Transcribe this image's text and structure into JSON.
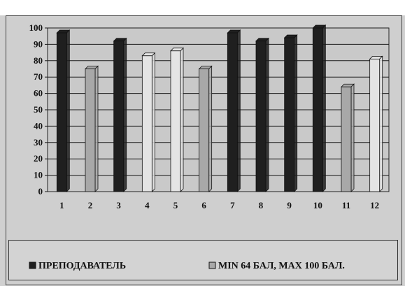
{
  "chart_data": {
    "type": "bar",
    "categories": [
      "1",
      "2",
      "3",
      "4",
      "5",
      "6",
      "7",
      "8",
      "9",
      "10",
      "11",
      "12"
    ],
    "series": [
      {
        "name": "ПРЕПОДАВАТЕЛЬ",
        "color": "#1f1f1f",
        "values": [
          97,
          null,
          92,
          null,
          null,
          null,
          97,
          92,
          94,
          100,
          null,
          null
        ]
      },
      {
        "name": "MIN 64 БАЛ, MAX 100 БАЛ.",
        "color": "#a8a8a8",
        "values": [
          null,
          75,
          null,
          null,
          null,
          75,
          null,
          null,
          null,
          null,
          64,
          null
        ]
      },
      {
        "name": "",
        "color": "#e4e4e4",
        "values": [
          null,
          null,
          null,
          83,
          86,
          null,
          null,
          null,
          null,
          null,
          null,
          81
        ]
      }
    ],
    "ylim": [
      0,
      100
    ],
    "yticks": [
      "0",
      "10",
      "20",
      "30",
      "40",
      "50",
      "60",
      "70",
      "80",
      "90",
      "100"
    ],
    "grid": true,
    "legend_position": "bottom"
  }
}
